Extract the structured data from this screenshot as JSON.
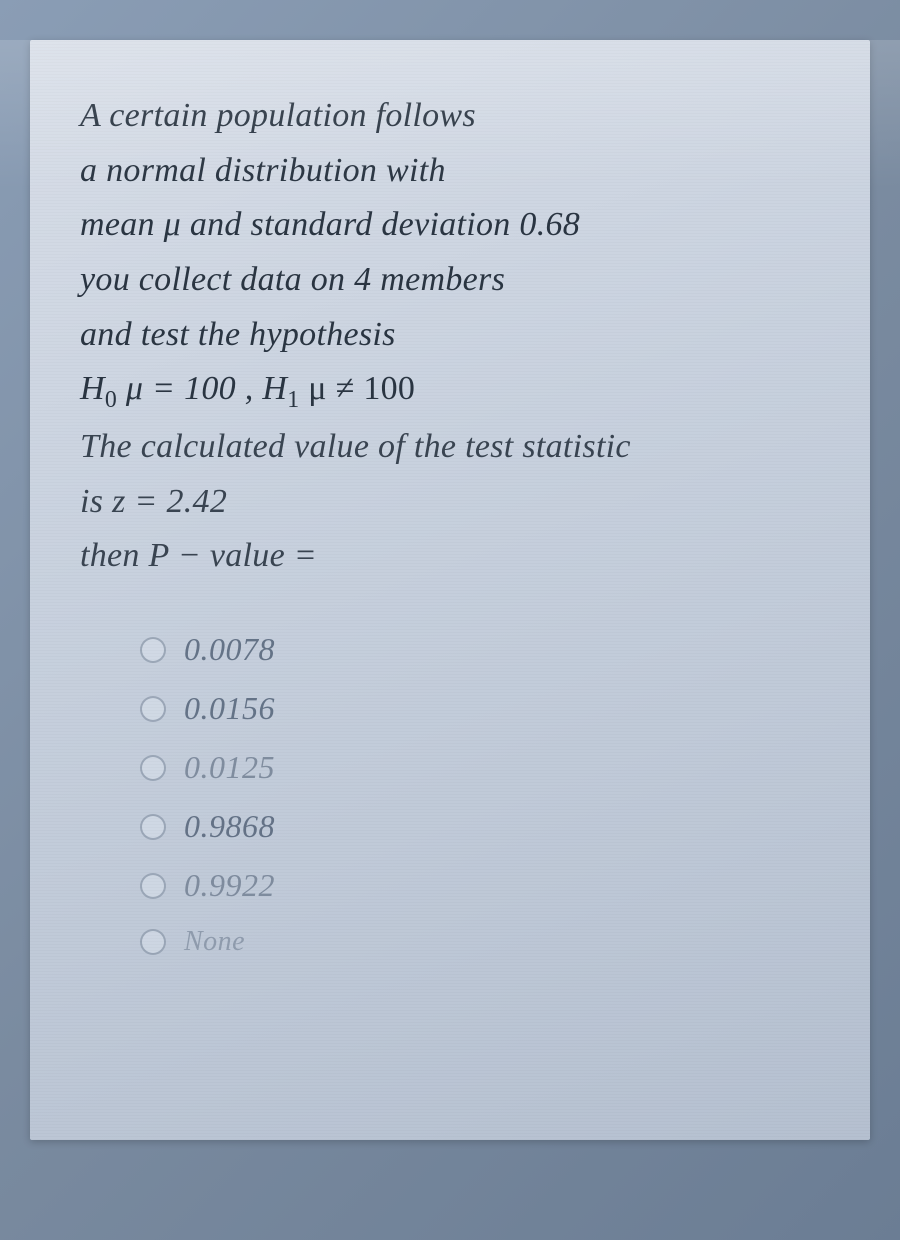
{
  "question": {
    "line1": "A certain population follows",
    "line2": "a normal distribution with",
    "line3_pre": "mean ",
    "line3_mu": "μ",
    "line3_post": " and standard deviation 0.68",
    "line4": "you collect data on 4 members",
    "line5": "and test the hypothesis",
    "hyp_h0_label": "H",
    "hyp_h0_sub": "0",
    "hyp_h0_expr": " μ = 100 , H",
    "hyp_h1_sub": "1",
    "hyp_h1_expr": " μ ≠ 100",
    "line7": "The calculated value of the test statistic",
    "line8": "is z = 2.42",
    "line9": "then P − value ="
  },
  "options": [
    {
      "label": "0.0078"
    },
    {
      "label": "0.0156"
    },
    {
      "label": "0.0125"
    },
    {
      "label": "0.9868"
    },
    {
      "label": "0.9922"
    },
    {
      "label": "None"
    }
  ],
  "styling": {
    "panel_bg_start": "#d8dee8",
    "panel_bg_end": "#b5c0d0",
    "body_bg": "#7a8ba0",
    "text_color": "#2a3542",
    "option_color": "#4a5a70",
    "question_fontsize": 34,
    "option_fontsize": 32,
    "radio_border": "rgba(120,135,155,0.6)"
  }
}
